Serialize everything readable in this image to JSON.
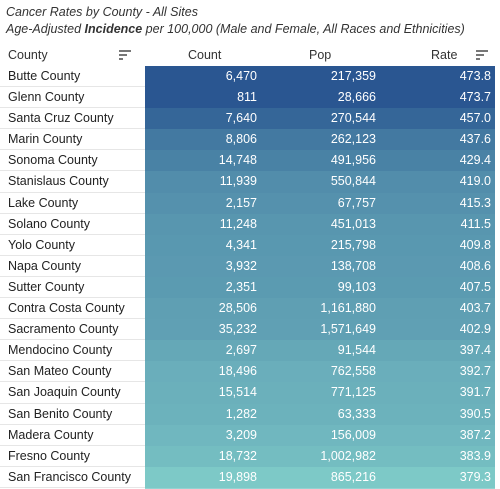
{
  "title": "Cancer Rates by County - All Sites",
  "subtitle_pre": "Age-Adjusted ",
  "subtitle_bold": "Incidence",
  "subtitle_post": " per 100,000 (Male and Female, All Races and Ethnicities)",
  "columns": {
    "county": "County",
    "count": "Count",
    "pop": "Pop",
    "rate": "Rate"
  },
  "colors": {
    "high": "#2a5691",
    "low": "#7dc9c7"
  },
  "chart_data": {
    "type": "table",
    "columns": [
      "County",
      "Count",
      "Pop",
      "Rate"
    ],
    "rows": [
      {
        "county": "Butte County",
        "count": "6,470",
        "pop": "217,359",
        "rate": "473.8",
        "rate_value": 473.8
      },
      {
        "county": "Glenn County",
        "count": "811",
        "pop": "28,666",
        "rate": "473.7",
        "rate_value": 473.7
      },
      {
        "county": "Santa Cruz County",
        "count": "7,640",
        "pop": "270,544",
        "rate": "457.0",
        "rate_value": 457.0
      },
      {
        "county": "Marin County",
        "count": "8,806",
        "pop": "262,123",
        "rate": "437.6",
        "rate_value": 437.6
      },
      {
        "county": "Sonoma County",
        "count": "14,748",
        "pop": "491,956",
        "rate": "429.4",
        "rate_value": 429.4
      },
      {
        "county": "Stanislaus County",
        "count": "11,939",
        "pop": "550,844",
        "rate": "419.0",
        "rate_value": 419.0
      },
      {
        "county": "Lake County",
        "count": "2,157",
        "pop": "67,757",
        "rate": "415.3",
        "rate_value": 415.3
      },
      {
        "county": "Solano County",
        "count": "11,248",
        "pop": "451,013",
        "rate": "411.5",
        "rate_value": 411.5
      },
      {
        "county": "Yolo County",
        "count": "4,341",
        "pop": "215,798",
        "rate": "409.8",
        "rate_value": 409.8
      },
      {
        "county": "Napa County",
        "count": "3,932",
        "pop": "138,708",
        "rate": "408.6",
        "rate_value": 408.6
      },
      {
        "county": "Sutter County",
        "count": "2,351",
        "pop": "99,103",
        "rate": "407.5",
        "rate_value": 407.5
      },
      {
        "county": "Contra Costa County",
        "count": "28,506",
        "pop": "1,161,880",
        "rate": "403.7",
        "rate_value": 403.7
      },
      {
        "county": "Sacramento County",
        "count": "35,232",
        "pop": "1,571,649",
        "rate": "402.9",
        "rate_value": 402.9
      },
      {
        "county": "Mendocino County",
        "count": "2,697",
        "pop": "91,544",
        "rate": "397.4",
        "rate_value": 397.4
      },
      {
        "county": "San Mateo County",
        "count": "18,496",
        "pop": "762,558",
        "rate": "392.7",
        "rate_value": 392.7
      },
      {
        "county": "San Joaquin County",
        "count": "15,514",
        "pop": "771,125",
        "rate": "391.7",
        "rate_value": 391.7
      },
      {
        "county": "San Benito County",
        "count": "1,282",
        "pop": "63,333",
        "rate": "390.5",
        "rate_value": 390.5
      },
      {
        "county": "Madera County",
        "count": "3,209",
        "pop": "156,009",
        "rate": "387.2",
        "rate_value": 387.2
      },
      {
        "county": "Fresno County",
        "count": "18,732",
        "pop": "1,002,982",
        "rate": "383.9",
        "rate_value": 383.9
      },
      {
        "county": "San Francisco County",
        "count": "19,898",
        "pop": "865,216",
        "rate": "379.3",
        "rate_value": 379.3
      }
    ]
  }
}
